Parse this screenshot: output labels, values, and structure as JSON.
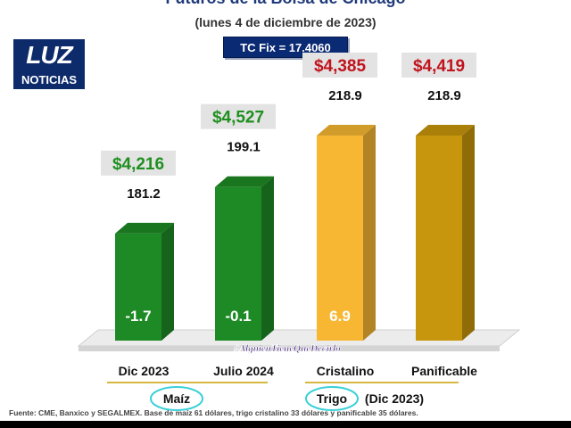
{
  "title": "Futuros de la Bolsa de Chicago",
  "subtitle": "(lunes 4 de diciembre de 2023)",
  "tc_fix": "TC Fix = 17.4060",
  "logo": {
    "line1": "LUZ",
    "line2": "NOTICIAS"
  },
  "watermark": "#AlguienTieneQueDecirlo",
  "footer": "Fuente: CME, Banxico y SEGALMEX. Base de maíz 61 dólares, trigo cristalino 33 dólares y panificable 35 dólares.",
  "colors": {
    "green": "#1e8a25",
    "yellow": "#f7b733",
    "gold": "#c8960c",
    "price_green": "#1f8f1f",
    "price_red": "#c0141e",
    "label_box": "#e3e3e3"
  },
  "chart_data": {
    "type": "bar",
    "categories": [
      "Dic 2023",
      "Julio 2024",
      "Cristalino",
      "Panificable"
    ],
    "values": [
      181.2,
      199.1,
      218.9,
      218.9
    ],
    "value_labels": [
      "181.2",
      "199.1",
      "218.9",
      "218.9"
    ],
    "price_labels": [
      "$4,216",
      "$4,527",
      "$4,385",
      "$4,419"
    ],
    "change_labels": [
      "-1.7",
      "-0.1",
      "6.9",
      ""
    ],
    "groups": [
      {
        "label": "Maíz",
        "categories": [
          "Dic 2023",
          "Julio 2024"
        ]
      },
      {
        "label": "Trigo",
        "suffix": "(Dic 2023)",
        "categories": [
          "Cristalino",
          "Panificable"
        ]
      }
    ],
    "ylim": [
      140,
      230
    ]
  }
}
